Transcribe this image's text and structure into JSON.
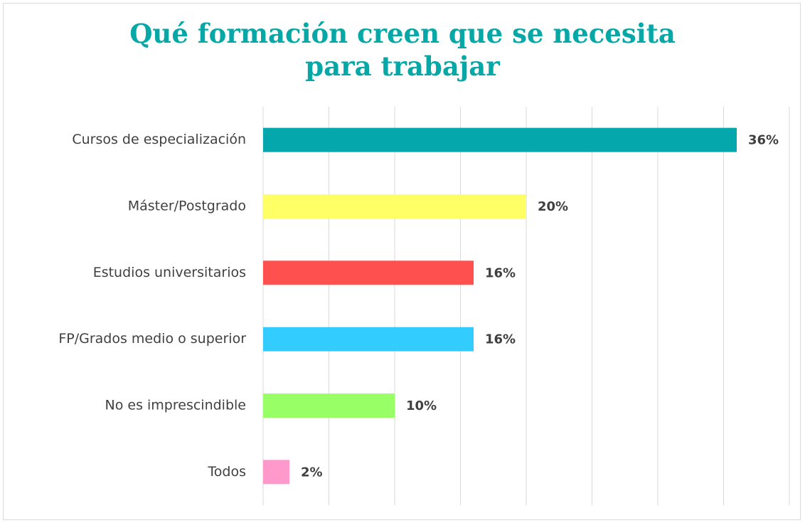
{
  "chart_data": {
    "type": "bar",
    "orientation": "horizontal",
    "title": "Qué formación creen que se necesita para trabajar",
    "categories": [
      "Cursos de especialización",
      "Máster/Postgrado",
      "Estudios universitarios",
      "FP/Grados medio o superior",
      "No es imprescindible",
      "Todos"
    ],
    "values": [
      36,
      20,
      16,
      16,
      10,
      2
    ],
    "value_labels": [
      "36%",
      "20%",
      "16%",
      "16%",
      "10%",
      "2%"
    ],
    "colors": [
      "#04a7ab",
      "#ffff66",
      "#ff5050",
      "#33ccff",
      "#99ff66",
      "#ff99cc"
    ],
    "xlim": [
      0,
      40
    ],
    "xticks": [
      0,
      5,
      10,
      15,
      20,
      25,
      30,
      35,
      40
    ],
    "grid": true
  }
}
